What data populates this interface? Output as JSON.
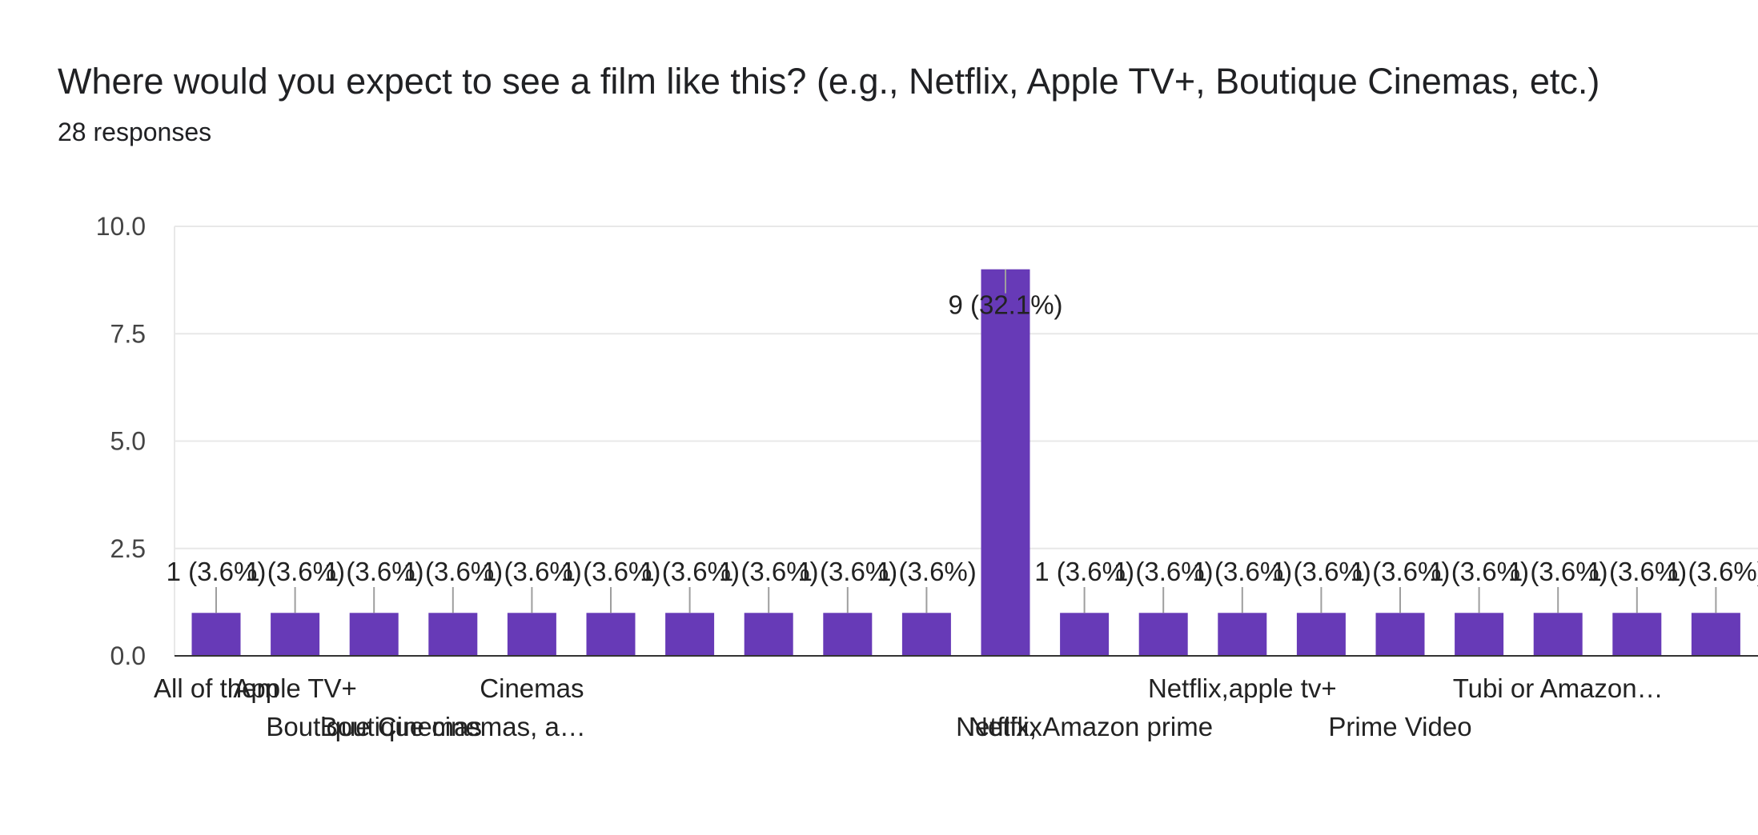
{
  "header": {
    "question": "Where would you expect to see a film like this? (e.g., Netflix, Apple TV+, Boutique Cinemas, etc.)",
    "responses": "28 responses"
  },
  "chart_data": {
    "type": "bar",
    "title": "Where would you expect to see a film like this? (e.g., Netflix, Apple TV+, Boutique Cinemas, etc.)",
    "categories": [
      "All of them",
      "Apple TV+",
      "Boutique Cinemas",
      "Boutique cinemas, a…",
      "Cinemas",
      "",
      "",
      "",
      "",
      "",
      "Netflix",
      "Netflix, Amazon prime",
      "",
      "Netflix,apple tv+",
      "",
      "Prime Video",
      "",
      "Tubi or Amazon…",
      "",
      ""
    ],
    "values": [
      1,
      1,
      1,
      1,
      1,
      1,
      1,
      1,
      1,
      1,
      9,
      1,
      1,
      1,
      1,
      1,
      1,
      1,
      1,
      1
    ],
    "data_labels": [
      "1 (3.6%)",
      "1 (3.6%)",
      "1 (3.6%)",
      "1 (3.6%)",
      "1 (3.6%)",
      "1 (3.6%)",
      "1 (3.6%)",
      "1 (3.6%)",
      "1 (3.6%)",
      "1 (3.6%)",
      "9 (32.1%)",
      "1 (3.6%)",
      "1 (3.6%)",
      "1 (3.6%)",
      "1 (3.6%)",
      "1 (3.6%)",
      "1 (3.6%)",
      "1 (3.6%)",
      "1 (3.6%)",
      "1 (3.6%)"
    ],
    "yticks": [
      "0.0",
      "2.5",
      "5.0",
      "7.5",
      "10.0"
    ],
    "ylim": [
      0,
      10
    ],
    "grid": true,
    "bar_color": "#673ab7",
    "gridline_color": "#e8e8e8",
    "axis_color": "#333333"
  }
}
